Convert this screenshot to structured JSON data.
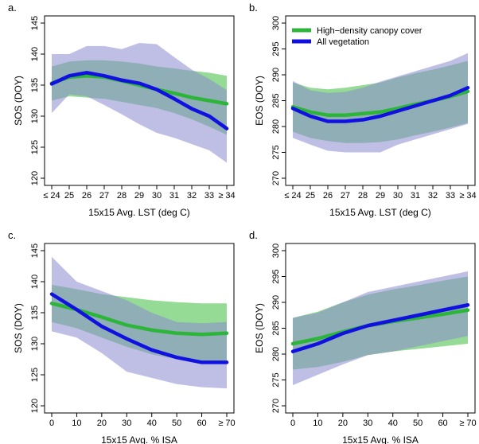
{
  "legend": {
    "items": [
      {
        "label": "High−density canopy cover",
        "color": "#2db53a"
      },
      {
        "label": "All vegetation",
        "color": "#1010e0"
      }
    ]
  },
  "colors": {
    "green_line": "#2db53a",
    "green_band": "#4fc24f",
    "blue_line": "#1010e0",
    "blue_band": "#8a8ad2"
  },
  "chart_data": [
    {
      "id": "a",
      "panel_label": "a.",
      "type": "line",
      "ylabel": "SOS (DOY)",
      "xlabel": "15x15 Avg. LST (deg C)",
      "x": [
        24,
        25,
        26,
        27,
        28,
        29,
        30,
        31,
        32,
        33,
        34
      ],
      "xtick_labels": [
        "≤ 24",
        "25",
        "26",
        "27",
        "28",
        "29",
        "30",
        "31",
        "32",
        "33",
        "≥ 34"
      ],
      "ylim": [
        120,
        145
      ],
      "yticks": [
        120,
        125,
        130,
        135,
        140,
        145
      ],
      "series": [
        {
          "name": "High−density canopy cover",
          "values": [
            135.3,
            136.3,
            136.5,
            136.3,
            135.7,
            135.0,
            134.3,
            133.7,
            133.0,
            132.5,
            132.0
          ],
          "lower": [
            132.5,
            133.2,
            133.0,
            132.8,
            132.3,
            131.8,
            131.3,
            130.5,
            129.5,
            128.3,
            127.0
          ],
          "upper": [
            138.0,
            138.8,
            139.0,
            139.0,
            138.8,
            138.5,
            138.0,
            137.7,
            137.3,
            137.0,
            136.5
          ]
        },
        {
          "name": "All vegetation",
          "values": [
            135.2,
            136.5,
            137.0,
            136.5,
            135.8,
            135.3,
            134.3,
            132.8,
            131.2,
            130.0,
            128.0
          ],
          "lower": [
            130.5,
            133.5,
            133.2,
            131.8,
            130.3,
            128.7,
            127.3,
            126.5,
            125.5,
            124.5,
            122.5
          ],
          "upper": [
            140.0,
            140.0,
            141.3,
            141.3,
            140.8,
            141.8,
            141.6,
            139.5,
            137.5,
            136.0,
            134.2
          ]
        }
      ]
    },
    {
      "id": "b",
      "panel_label": "b.",
      "type": "line",
      "ylabel": "EOS (DOY)",
      "xlabel": "15x15 Avg. LST (deg C)",
      "x": [
        24,
        25,
        26,
        27,
        28,
        29,
        30,
        31,
        32,
        33,
        34
      ],
      "xtick_labels": [
        "≤ 24",
        "25",
        "26",
        "27",
        "28",
        "29",
        "30",
        "31",
        "32",
        "33",
        "≥ 34"
      ],
      "ylim": [
        270,
        300
      ],
      "yticks": [
        270,
        275,
        280,
        285,
        290,
        295,
        300
      ],
      "series": [
        {
          "name": "High−density canopy cover",
          "values": [
            283.8,
            282.8,
            282.2,
            282.2,
            282.5,
            282.8,
            283.5,
            284.3,
            285.0,
            285.8,
            286.8
          ],
          "lower": [
            279.0,
            277.8,
            277.2,
            276.8,
            276.8,
            277.0,
            277.5,
            278.3,
            279.0,
            279.8,
            280.7
          ],
          "upper": [
            288.5,
            287.5,
            287.2,
            287.5,
            288.0,
            288.5,
            289.5,
            290.3,
            291.0,
            291.8,
            292.7
          ]
        },
        {
          "name": "All vegetation",
          "values": [
            283.5,
            282.0,
            281.0,
            281.0,
            281.3,
            282.0,
            283.0,
            284.0,
            285.0,
            286.0,
            287.5
          ],
          "lower": [
            277.8,
            276.5,
            275.3,
            275.0,
            275.0,
            275.0,
            276.5,
            277.5,
            278.5,
            279.5,
            280.5
          ],
          "upper": [
            288.8,
            287.0,
            286.5,
            286.7,
            287.5,
            288.7,
            289.7,
            290.7,
            291.7,
            292.7,
            294.2
          ]
        }
      ]
    },
    {
      "id": "c",
      "panel_label": "c.",
      "type": "line",
      "ylabel": "SOS (DOY)",
      "xlabel": "15x15 Avg. % ISA",
      "x": [
        0,
        10,
        20,
        30,
        40,
        50,
        60,
        70
      ],
      "xtick_labels": [
        "0",
        "10",
        "20",
        "30",
        "40",
        "50",
        "60",
        "≥ 70"
      ],
      "ylim": [
        120,
        145
      ],
      "yticks": [
        120,
        125,
        130,
        135,
        140,
        145
      ],
      "series": [
        {
          "name": "High−density canopy cover",
          "values": [
            136.5,
            135.5,
            134.3,
            133.0,
            132.2,
            131.7,
            131.5,
            131.7
          ],
          "lower": [
            133.5,
            132.5,
            131.0,
            129.5,
            128.3,
            127.5,
            127.0,
            126.8
          ],
          "upper": [
            139.5,
            138.8,
            138.0,
            137.5,
            137.0,
            136.7,
            136.5,
            136.5
          ]
        },
        {
          "name": "All vegetation",
          "values": [
            138.0,
            135.5,
            132.8,
            130.8,
            129.0,
            127.8,
            127.0,
            127.0
          ],
          "lower": [
            132.0,
            131.0,
            128.5,
            125.5,
            124.5,
            123.5,
            123.0,
            122.8
          ],
          "upper": [
            144.0,
            140.0,
            138.5,
            137.0,
            135.0,
            133.5,
            133.3,
            133.5
          ]
        }
      ]
    },
    {
      "id": "d",
      "panel_label": "d.",
      "type": "line",
      "ylabel": "EOS (DOY)",
      "xlabel": "15x15 Avg. % ISA",
      "x": [
        0,
        10,
        20,
        30,
        40,
        50,
        60,
        70
      ],
      "xtick_labels": [
        "0",
        "10",
        "20",
        "30",
        "40",
        "50",
        "60",
        "≥ 70"
      ],
      "ylim": [
        270,
        300
      ],
      "yticks": [
        270,
        275,
        280,
        285,
        290,
        295,
        300
      ],
      "series": [
        {
          "name": "High−density canopy cover",
          "values": [
            282.0,
            283.0,
            284.3,
            285.5,
            286.3,
            287.0,
            287.7,
            288.5
          ],
          "lower": [
            277.0,
            277.5,
            278.5,
            279.8,
            280.5,
            281.0,
            281.5,
            282.0
          ],
          "upper": [
            287.0,
            288.2,
            290.0,
            291.5,
            292.5,
            293.3,
            294.2,
            295.0
          ]
        },
        {
          "name": "All vegetation",
          "values": [
            280.5,
            282.0,
            284.0,
            285.5,
            286.5,
            287.5,
            288.5,
            289.5
          ],
          "lower": [
            274.0,
            276.0,
            278.0,
            279.8,
            280.5,
            281.5,
            282.5,
            283.5
          ],
          "upper": [
            287.0,
            288.0,
            290.0,
            292.0,
            293.0,
            294.0,
            295.0,
            296.0
          ]
        }
      ]
    }
  ]
}
